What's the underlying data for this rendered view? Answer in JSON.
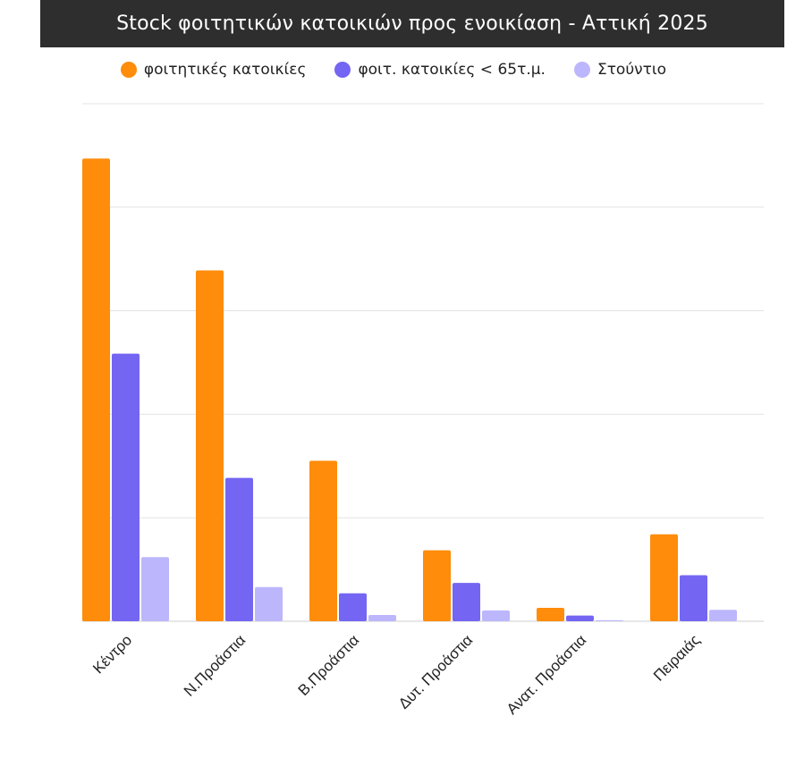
{
  "chart_data": {
    "type": "bar",
    "title": "Stock  φοιτητικών κατοικιών προς ενοικίαση - Αττική 2025",
    "categories": [
      "Κέντρο",
      "Ν.Προάστια",
      "Β.Προάστια",
      "Δυτ. Προάστια",
      "Ανατ. Προάστια",
      "Πειραιάς"
    ],
    "series": [
      {
        "name": "φοιτητικές κατοικίες",
        "values": [
          4470,
          3390,
          1550,
          685,
          130,
          840
        ],
        "color": "#ff8c0a"
      },
      {
        "name": "φοιτ. κατοικίες < 65τ.μ.",
        "values": [
          2585,
          1385,
          270,
          370,
          55,
          445
        ],
        "color": "#7466f2"
      },
      {
        "name": "Στούντιο",
        "values": [
          620,
          330,
          60,
          105,
          10,
          110
        ],
        "color": "#bcb7fc"
      }
    ],
    "ylim": [
      0,
      5000
    ],
    "grid": true,
    "legend_position": "top-center",
    "xlabel": "",
    "ylabel": ""
  }
}
